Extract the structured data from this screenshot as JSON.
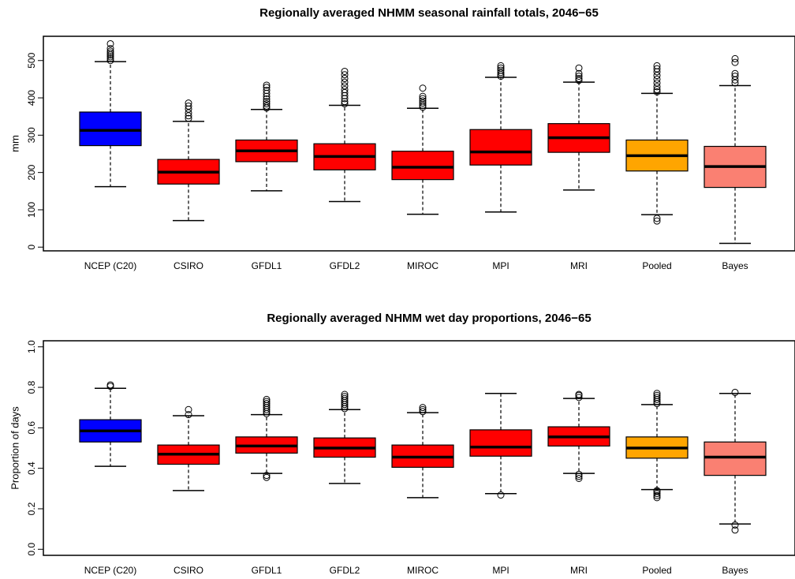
{
  "chart_data": [
    {
      "type": "boxplot",
      "title": "Regionally averaged NHMM seasonal rainfall totals, 2046−65",
      "xlabel": "",
      "ylabel": "mm",
      "ylim": [
        -10,
        565
      ],
      "yticks": [
        0,
        100,
        200,
        300,
        400,
        500
      ],
      "ytick_labels": [
        "0",
        "100",
        "200",
        "300",
        "400",
        "500"
      ],
      "categories": [
        "NCEP (C20)",
        "CSIRO",
        "GFDL1",
        "GFDL2",
        "MIROC",
        "MPI",
        "MRI",
        "Pooled",
        "Bayes"
      ],
      "colors": [
        "#0000ff",
        "#ff0000",
        "#ff0000",
        "#ff0000",
        "#ff0000",
        "#ff0000",
        "#ff0000",
        "#ffa500",
        "#fa8072"
      ],
      "boxes": [
        {
          "min": 162,
          "q1": 272,
          "median": 313,
          "q3": 362,
          "max": 497,
          "outliers": [
            500,
            505,
            510,
            515,
            520,
            525,
            532,
            545
          ]
        },
        {
          "min": 71,
          "q1": 169,
          "median": 201,
          "q3": 235,
          "max": 337,
          "outliers": [
            345,
            352,
            360,
            370,
            378,
            386
          ]
        },
        {
          "min": 151,
          "q1": 229,
          "median": 258,
          "q3": 287,
          "max": 369,
          "outliers": [
            373,
            378,
            384,
            390,
            397,
            404,
            412,
            420,
            428,
            434
          ]
        },
        {
          "min": 122,
          "q1": 207,
          "median": 243,
          "q3": 277,
          "max": 380,
          "outliers": [
            384,
            390,
            398,
            406,
            414,
            422,
            432,
            442,
            452,
            462,
            471
          ]
        },
        {
          "min": 88,
          "q1": 181,
          "median": 214,
          "q3": 257,
          "max": 372,
          "outliers": [
            375,
            380,
            386,
            392,
            398,
            404,
            426
          ]
        },
        {
          "min": 94,
          "q1": 220,
          "median": 255,
          "q3": 315,
          "max": 455,
          "outliers": [
            458,
            463,
            468,
            474,
            480,
            486
          ]
        },
        {
          "min": 153,
          "q1": 254,
          "median": 293,
          "q3": 331,
          "max": 442,
          "outliers": [
            447,
            452,
            458,
            465,
            480
          ]
        },
        {
          "min": 87,
          "q1": 204,
          "median": 245,
          "q3": 287,
          "max": 412,
          "outliers": [
            70,
            77,
            416,
            422,
            430,
            440,
            450,
            460,
            470,
            478,
            486
          ]
        },
        {
          "min": 10,
          "q1": 160,
          "median": 216,
          "q3": 270,
          "max": 433,
          "outliers": [
            440,
            448,
            458,
            465,
            495,
            505
          ]
        }
      ]
    },
    {
      "type": "boxplot",
      "title": "Regionally averaged NHMM wet day proportions, 2046−65",
      "xlabel": "",
      "ylabel": "Proportion of days",
      "ylim": [
        -0.03,
        1.03
      ],
      "yticks": [
        0.0,
        0.2,
        0.4,
        0.6,
        0.8,
        1.0
      ],
      "ytick_labels": [
        "0.0",
        "0.2",
        "0.4",
        "0.6",
        "0.8",
        "1.0"
      ],
      "categories": [
        "NCEP (C20)",
        "CSIRO",
        "GFDL1",
        "GFDL2",
        "MIROC",
        "MPI",
        "MRI",
        "Pooled",
        "Bayes"
      ],
      "colors": [
        "#0000ff",
        "#ff0000",
        "#ff0000",
        "#ff0000",
        "#ff0000",
        "#ff0000",
        "#ff0000",
        "#ffa500",
        "#fa8072"
      ],
      "boxes": [
        {
          "min": 0.41,
          "q1": 0.53,
          "median": 0.585,
          "q3": 0.64,
          "max": 0.795,
          "outliers": [
            0.805,
            0.812
          ]
        },
        {
          "min": 0.29,
          "q1": 0.42,
          "median": 0.47,
          "q3": 0.515,
          "max": 0.66,
          "outliers": [
            0.665,
            0.69
          ]
        },
        {
          "min": 0.375,
          "q1": 0.475,
          "median": 0.51,
          "q3": 0.555,
          "max": 0.665,
          "outliers": [
            0.355,
            0.365,
            0.67,
            0.68,
            0.69,
            0.7,
            0.71,
            0.72,
            0.73,
            0.74
          ]
        },
        {
          "min": 0.325,
          "q1": 0.455,
          "median": 0.5,
          "q3": 0.55,
          "max": 0.69,
          "outliers": [
            0.695,
            0.705,
            0.715,
            0.725,
            0.735,
            0.745,
            0.755,
            0.765
          ]
        },
        {
          "min": 0.255,
          "q1": 0.405,
          "median": 0.455,
          "q3": 0.515,
          "max": 0.675,
          "outliers": [
            0.68,
            0.69,
            0.7
          ]
        },
        {
          "min": 0.275,
          "q1": 0.46,
          "median": 0.505,
          "q3": 0.59,
          "max": 0.77,
          "outliers": [
            0.268
          ]
        },
        {
          "min": 0.375,
          "q1": 0.51,
          "median": 0.555,
          "q3": 0.605,
          "max": 0.745,
          "outliers": [
            0.35,
            0.36,
            0.37,
            0.75,
            0.76,
            0.765
          ]
        },
        {
          "min": 0.295,
          "q1": 0.45,
          "median": 0.5,
          "q3": 0.555,
          "max": 0.715,
          "outliers": [
            0.255,
            0.265,
            0.275,
            0.285,
            0.29,
            0.72,
            0.73,
            0.74,
            0.75,
            0.76,
            0.77
          ]
        },
        {
          "min": 0.125,
          "q1": 0.365,
          "median": 0.455,
          "q3": 0.53,
          "max": 0.77,
          "outliers": [
            0.095,
            0.12,
            0.775
          ]
        }
      ]
    }
  ]
}
